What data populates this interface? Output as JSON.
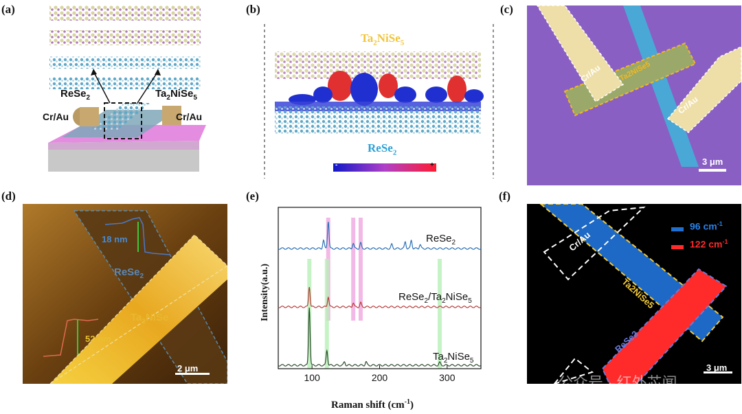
{
  "panels": {
    "a": {
      "label": "(a)",
      "material_left": "ReSe",
      "material_left_sub": "2",
      "material_right": "Ta",
      "material_right_sub1": "2",
      "material_right_mid": "NiSe",
      "material_right_sub2": "5",
      "contact_left": "Cr/Au",
      "contact_right": "Cr/Au"
    },
    "b": {
      "label": "(b)",
      "top_material": "Ta",
      "top_sub1": "2",
      "top_mid": "NiSe",
      "top_sub2": "5",
      "bottom_material": "ReSe",
      "bottom_sub": "2",
      "scale_minus": "-",
      "scale_plus": "+"
    },
    "c": {
      "label": "(c)",
      "contact1": "Cr/Au",
      "contact2": "Cr/Au",
      "flake": "Ta2NiSe5",
      "scalebar": "3 μm",
      "colors": {
        "substrate": "#8a5fc4",
        "gold": "#eedfa8",
        "rese2": "#49a8d6"
      }
    },
    "d": {
      "label": "(d)",
      "height1": "18 nm",
      "height2": "52 nm",
      "flake1": "ReSe",
      "flake1_sub": "2",
      "flake2": "Ta",
      "flake2_sub1": "2",
      "flake2_mid": "NiSe",
      "scalebar": "2 μm"
    },
    "e": {
      "label": "(e)",
      "ylabel": "Intensity(a.u.)",
      "xlabel": "Raman shift (cm",
      "xlabel_sup": "-1",
      "xlabel_end": ")"
    },
    "f": {
      "label": "(f)",
      "legend1": "96 cm",
      "legend1_sup": "-1",
      "legend2": "122 cm",
      "legend2_sup": "-1",
      "contact": "Cr/Au",
      "flake1": "Ta2NiSe5",
      "flake2": "ReSe2",
      "scalebar": "3 μm",
      "colors": {
        "blue": "#1f6fd0",
        "red": "#ff2a2a",
        "yellow_dash": "#f2c93a"
      }
    },
    "watermark": "公众号 · 红外芯闻"
  },
  "chart_data": {
    "type": "line",
    "xlabel": "Raman shift (cm-1)",
    "ylabel": "Intensity(a.u.)",
    "xlim": [
      50,
      350
    ],
    "xticks": [
      100,
      200,
      300
    ],
    "series": [
      {
        "name": "ReSe2",
        "peaks": [
          117,
          124,
          161,
          172,
          218,
          238,
          247,
          260
        ],
        "color": "#2a6fb5"
      },
      {
        "name": "ReSe2/Ta2NiSe5",
        "peaks": [
          96,
          124,
          161,
          172
        ],
        "color": "#b83a3a"
      },
      {
        "name": "Ta2NiSe5",
        "peaks": [
          96,
          122,
          148,
          180,
          289
        ],
        "color": "#2e4a2e"
      }
    ],
    "highlight_bands": {
      "pink": [
        124,
        161,
        172
      ],
      "green": [
        96,
        122,
        289
      ]
    }
  }
}
